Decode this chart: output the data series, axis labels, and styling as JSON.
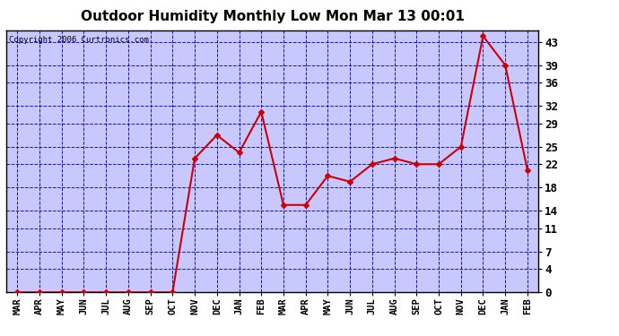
{
  "title": "Outdoor Humidity Monthly Low Mon Mar 13 00:01",
  "copyright": "Copyright 2006 Curtronics.com",
  "categories": [
    "MAR",
    "APR",
    "MAY",
    "JUN",
    "JUL",
    "AUG",
    "SEP",
    "OCT",
    "NOV",
    "DEC",
    "JAN",
    "FEB",
    "MAR",
    "APR",
    "MAY",
    "JUN",
    "JUL",
    "AUG",
    "SEP",
    "OCT",
    "NOV",
    "DEC",
    "JAN",
    "FEB"
  ],
  "values": [
    0,
    0,
    0,
    0,
    0,
    0,
    0,
    0,
    23,
    27,
    24,
    31,
    15,
    15,
    20,
    19,
    22,
    23,
    22,
    22,
    25,
    44,
    39,
    21
  ],
  "line_color": "#cc0000",
  "marker_color": "#cc0000",
  "bg_color": "#c8c8ff",
  "grid_color": "#0000cc",
  "yticks": [
    0,
    4,
    7,
    11,
    14,
    18,
    22,
    25,
    29,
    32,
    36,
    39,
    43
  ],
  "ylim": [
    0,
    45
  ],
  "title_fontsize": 11,
  "axis_font_size": 7.5,
  "copyright_fontsize": 6.5
}
